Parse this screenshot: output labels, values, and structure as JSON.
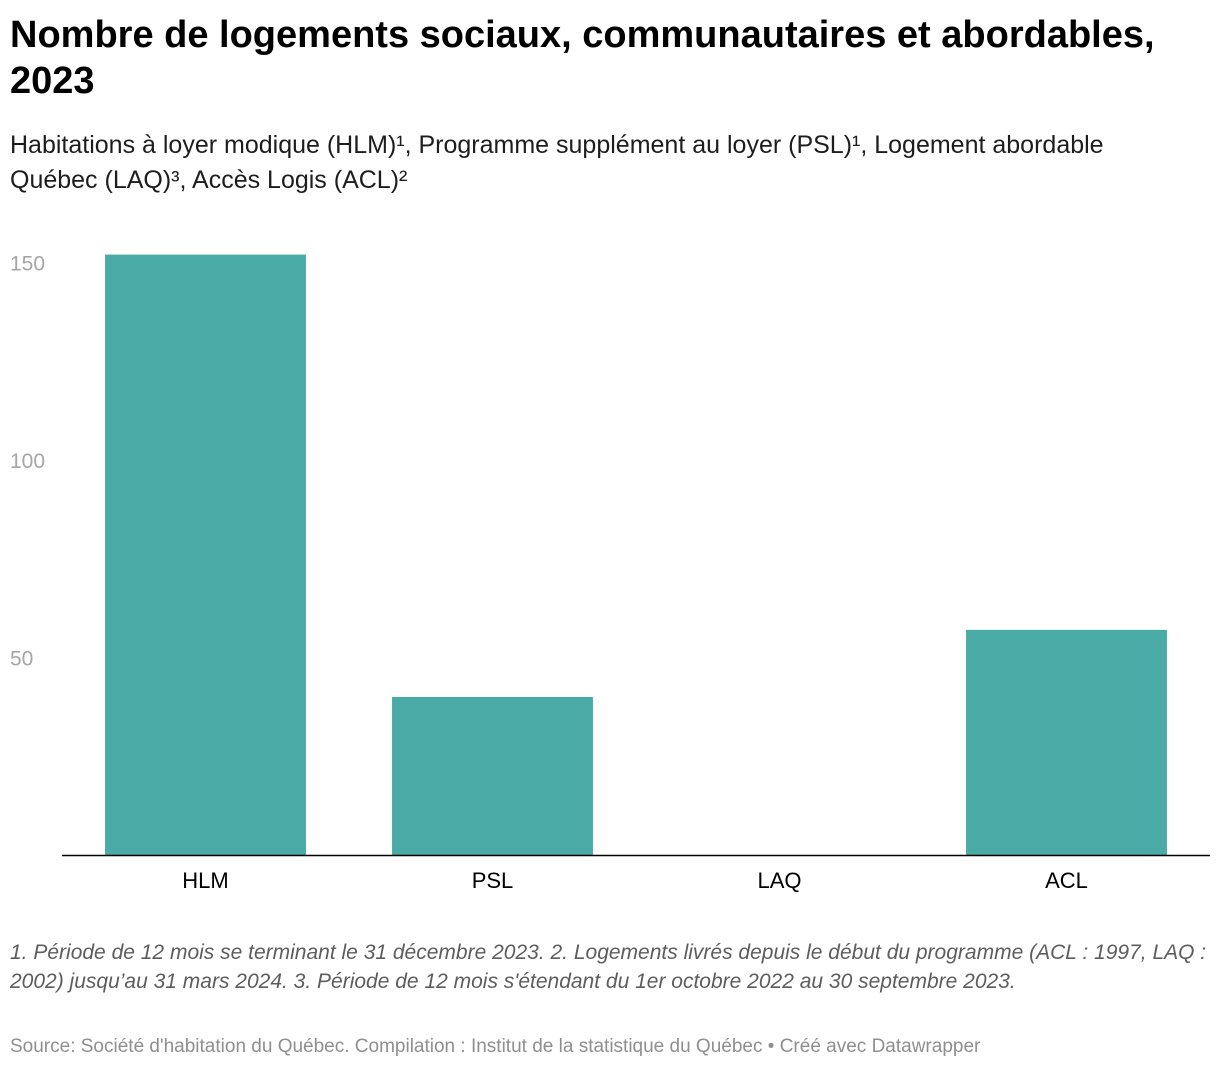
{
  "header": {
    "title": "Nombre de logements sociaux, communautaires et abordables, 2023",
    "subtitle": "Habitations à loyer modique (HLM)¹, Programme supplément au loyer (PSL)¹, Logement abordable Québec (LAQ)³, Accès Logis (ACL)²"
  },
  "chart_data": {
    "type": "bar",
    "title": "Nombre de logements sociaux, communautaires et abordables, 2023",
    "xlabel": "",
    "ylabel": "",
    "categories": [
      "HLM",
      "PSL",
      "LAQ",
      "ACL"
    ],
    "values": [
      152,
      40,
      0,
      57
    ],
    "ylim": [
      0,
      150
    ],
    "yticks": [
      50,
      100,
      150
    ],
    "grid": false,
    "legend": "none",
    "colors": {
      "bar": "#49aaa6",
      "axis": "#000000",
      "tick_label": "#a6a6a6",
      "category_label": "#000000"
    }
  },
  "footer": {
    "notes": "1. Période de 12 mois se terminant le 31 décembre 2023. 2. Logements livrés depuis le début du programme (ACL : 1997, LAQ : 2002) jusqu’au 31 mars 2024. 3. Période de 12 mois s'étendant du 1er octobre 2022 au 30 septembre 2023.",
    "source": "Source: Société d'habitation du Québec. Compilation : Institut de la statistique du Québec",
    "separator": " • ",
    "credit": "Créé avec Datawrapper"
  }
}
